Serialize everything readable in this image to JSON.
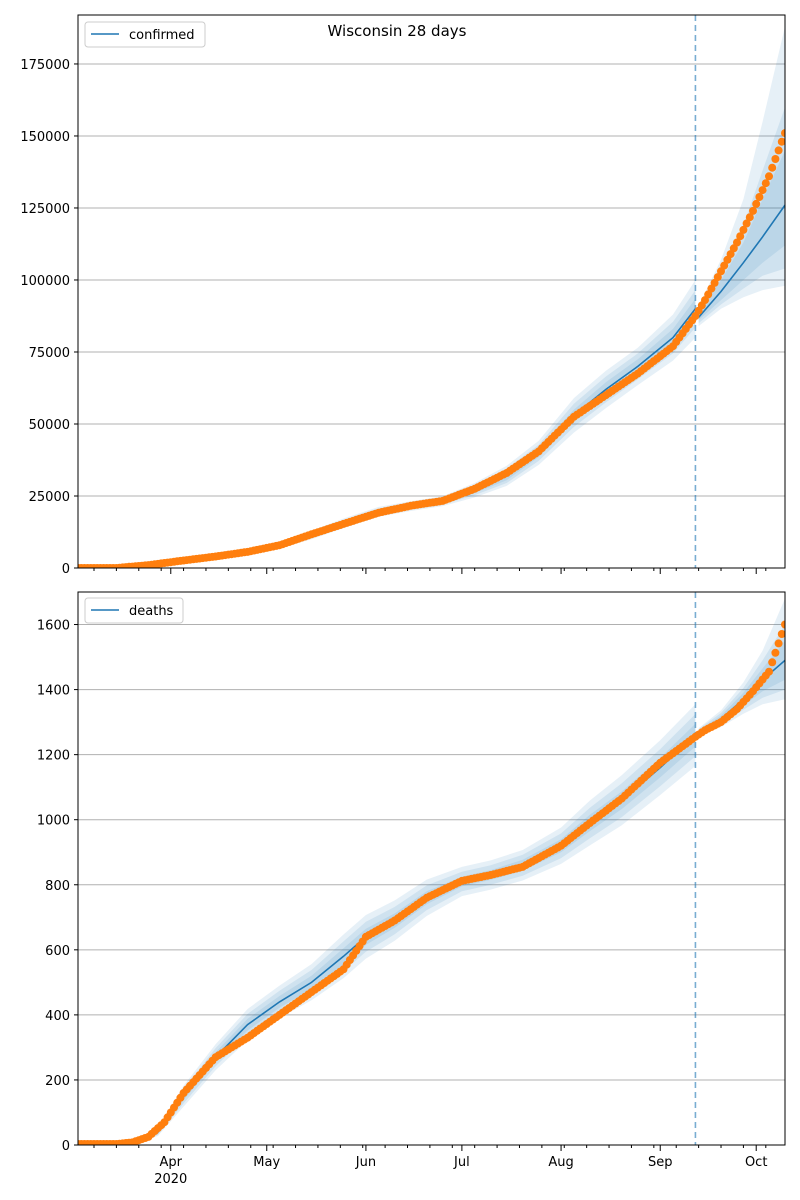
{
  "figure": {
    "title": "Wisconsin 28 days"
  },
  "colors": {
    "model_line": "#1f77b4",
    "observed_points": "#ff7f0e",
    "band": "#1f77b4",
    "vline": "#1f77b4",
    "grid": "#b0b0b0"
  },
  "chart_data": [
    {
      "type": "line",
      "legend": {
        "label": "confirmed",
        "loc": "upper-left"
      },
      "ylim": [
        0,
        192000
      ],
      "yticks": [
        0,
        25000,
        50000,
        75000,
        100000,
        125000,
        150000,
        175000
      ],
      "xlim": [
        "2020-03-03",
        "2020-10-10"
      ],
      "grid": "y",
      "forecast_start": "2020-09-12",
      "model": {
        "dates": [
          "2020-03-03",
          "2020-03-15",
          "2020-03-25",
          "2020-04-05",
          "2020-04-15",
          "2020-04-25",
          "2020-05-05",
          "2020-05-15",
          "2020-05-25",
          "2020-06-05",
          "2020-06-15",
          "2020-06-25",
          "2020-07-05",
          "2020-07-15",
          "2020-07-25",
          "2020-08-05",
          "2020-08-15",
          "2020-08-25",
          "2020-09-05",
          "2020-09-12",
          "2020-09-13",
          "2020-09-20",
          "2020-09-27",
          "2020-10-03",
          "2020-10-10"
        ],
        "values": [
          0,
          0,
          1000,
          2700,
          4000,
          5600,
          7900,
          11500,
          15500,
          19500,
          21500,
          23200,
          27000,
          32000,
          40000,
          53000,
          62000,
          70000,
          80000,
          90000,
          87000,
          96000,
          106000,
          115000,
          126000
        ],
        "band_inner": {
          "lower": [
            0,
            0,
            900,
            2500,
            3700,
            5200,
            7400,
            10900,
            14800,
            18800,
            20800,
            22500,
            26000,
            30500,
            38500,
            51000,
            59500,
            67500,
            77000,
            86500,
            86000,
            93000,
            100000,
            106000,
            112000
          ],
          "upper": [
            0,
            0,
            1100,
            2900,
            4300,
            6000,
            8400,
            12100,
            16200,
            20200,
            22200,
            23900,
            28000,
            33500,
            41500,
            55000,
            64500,
            72500,
            83000,
            93500,
            89000,
            100000,
            113000,
            128000,
            145000
          ]
        },
        "band_mid": {
          "lower": [
            0,
            0,
            850,
            2400,
            3500,
            5000,
            7100,
            10500,
            14300,
            18300,
            20300,
            22000,
            25300,
            29500,
            37200,
            49000,
            57500,
            65500,
            74500,
            83500,
            85000,
            91500,
            97000,
            101500,
            104000
          ],
          "upper": [
            0,
            0,
            1150,
            3000,
            4500,
            6200,
            8700,
            12500,
            16700,
            20700,
            22700,
            24400,
            28700,
            34500,
            42800,
            57000,
            66500,
            74500,
            85500,
            96500,
            90000,
            103000,
            119000,
            138000,
            160000
          ]
        },
        "band_outer": {
          "lower": [
            0,
            0,
            800,
            2300,
            3300,
            4800,
            6800,
            10000,
            13800,
            17800,
            19800,
            21500,
            24500,
            28500,
            35800,
            47000,
            55500,
            63500,
            72000,
            80000,
            84000,
            90000,
            94000,
            96500,
            98000
          ],
          "upper": [
            0,
            0,
            1200,
            3100,
            4700,
            6400,
            9000,
            13000,
            17200,
            21200,
            23200,
            24900,
            29500,
            35500,
            44200,
            59000,
            68500,
            76500,
            88000,
            100000,
            91000,
            107000,
            128000,
            155000,
            188000
          ]
        }
      },
      "observed": {
        "dates": [
          "2020-03-03",
          "2020-03-15",
          "2020-03-25",
          "2020-04-05",
          "2020-04-15",
          "2020-04-25",
          "2020-05-05",
          "2020-05-15",
          "2020-05-25",
          "2020-06-05",
          "2020-06-15",
          "2020-06-25",
          "2020-07-05",
          "2020-07-15",
          "2020-07-25",
          "2020-08-05",
          "2020-08-15",
          "2020-08-25",
          "2020-09-05",
          "2020-09-12",
          "2020-09-15",
          "2020-09-20",
          "2020-09-25",
          "2020-09-30",
          "2020-10-05",
          "2020-10-10"
        ],
        "values": [
          0,
          0,
          1000,
          2600,
          4000,
          5600,
          7900,
          11700,
          15300,
          19200,
          21600,
          23300,
          27500,
          33000,
          40500,
          52500,
          60000,
          67500,
          77000,
          87500,
          93000,
          103000,
          113000,
          124000,
          136000,
          151000
        ]
      }
    },
    {
      "type": "line",
      "legend": {
        "label": "deaths",
        "loc": "upper-left"
      },
      "ylim": [
        0,
        1700
      ],
      "yticks": [
        0,
        200,
        400,
        600,
        800,
        1000,
        1200,
        1400,
        1600
      ],
      "xlim": [
        "2020-03-03",
        "2020-10-10"
      ],
      "x_month_ticks": [
        {
          "date": "2020-04-01",
          "label": "Apr",
          "sublabel": "2020"
        },
        {
          "date": "2020-05-01",
          "label": "May"
        },
        {
          "date": "2020-06-01",
          "label": "Jun"
        },
        {
          "date": "2020-07-01",
          "label": "Jul"
        },
        {
          "date": "2020-08-01",
          "label": "Aug"
        },
        {
          "date": "2020-09-01",
          "label": "Sep"
        },
        {
          "date": "2020-10-01",
          "label": "Oct"
        }
      ],
      "grid": "y",
      "forecast_start": "2020-09-12",
      "model": {
        "dates": [
          "2020-03-03",
          "2020-03-15",
          "2020-03-22",
          "2020-03-28",
          "2020-04-05",
          "2020-04-15",
          "2020-04-25",
          "2020-05-05",
          "2020-05-15",
          "2020-05-25",
          "2020-06-01",
          "2020-06-10",
          "2020-06-20",
          "2020-07-01",
          "2020-07-10",
          "2020-07-20",
          "2020-08-01",
          "2020-08-10",
          "2020-08-20",
          "2020-09-01",
          "2020-09-12",
          "2020-09-13",
          "2020-09-20",
          "2020-09-27",
          "2020-10-03",
          "2020-10-10"
        ],
        "values": [
          3,
          3,
          10,
          40,
          150,
          270,
          370,
          440,
          500,
          580,
          640,
          690,
          760,
          810,
          830,
          860,
          920,
          990,
          1060,
          1160,
          1260,
          1270,
          1310,
          1370,
          1430,
          1490
        ],
        "band_inner": {
          "lower": [
            3,
            3,
            8,
            34,
            138,
            255,
            352,
            422,
            480,
            555,
            615,
            668,
            740,
            795,
            815,
            843,
            900,
            965,
            1033,
            1130,
            1225,
            1265,
            1300,
            1350,
            1395,
            1430
          ],
          "upper": [
            3,
            3,
            12,
            46,
            162,
            285,
            388,
            458,
            520,
            605,
            665,
            712,
            780,
            825,
            845,
            877,
            940,
            1015,
            1087,
            1190,
            1295,
            1275,
            1320,
            1390,
            1465,
            1550
          ]
        },
        "band_mid": {
          "lower": [
            3,
            3,
            7,
            31,
            128,
            242,
            337,
            406,
            462,
            534,
            594,
            648,
            722,
            780,
            800,
            828,
            882,
            943,
            1008,
            1103,
            1195,
            1262,
            1292,
            1338,
            1375,
            1400
          ],
          "upper": [
            3,
            3,
            13,
            50,
            172,
            298,
            403,
            474,
            538,
            626,
            686,
            732,
            798,
            840,
            860,
            892,
            958,
            1037,
            1112,
            1217,
            1325,
            1278,
            1328,
            1405,
            1490,
            1600
          ]
        },
        "band_outer": {
          "lower": [
            3,
            3,
            6,
            28,
            118,
            230,
            322,
            390,
            445,
            513,
            573,
            628,
            704,
            765,
            785,
            813,
            864,
            921,
            983,
            1076,
            1165,
            1259,
            1285,
            1326,
            1355,
            1370
          ],
          "upper": [
            3,
            3,
            14,
            54,
            182,
            310,
            418,
            490,
            556,
            647,
            707,
            752,
            816,
            855,
            875,
            907,
            976,
            1059,
            1137,
            1244,
            1355,
            1281,
            1336,
            1422,
            1520,
            1680
          ]
        }
      },
      "observed": {
        "dates": [
          "2020-03-03",
          "2020-03-15",
          "2020-03-20",
          "2020-03-25",
          "2020-03-30",
          "2020-04-05",
          "2020-04-15",
          "2020-04-25",
          "2020-05-05",
          "2020-05-15",
          "2020-05-25",
          "2020-06-01",
          "2020-06-10",
          "2020-06-20",
          "2020-07-01",
          "2020-07-10",
          "2020-07-20",
          "2020-08-01",
          "2020-08-10",
          "2020-08-20",
          "2020-09-01",
          "2020-09-12",
          "2020-09-15",
          "2020-09-20",
          "2020-09-25",
          "2020-09-30",
          "2020-10-05",
          "2020-10-10"
        ],
        "values": [
          3,
          3,
          8,
          25,
          70,
          160,
          270,
          330,
          400,
          470,
          540,
          640,
          690,
          760,
          812,
          830,
          855,
          920,
          990,
          1065,
          1175,
          1255,
          1275,
          1300,
          1340,
          1395,
          1455,
          1600
        ]
      }
    }
  ]
}
